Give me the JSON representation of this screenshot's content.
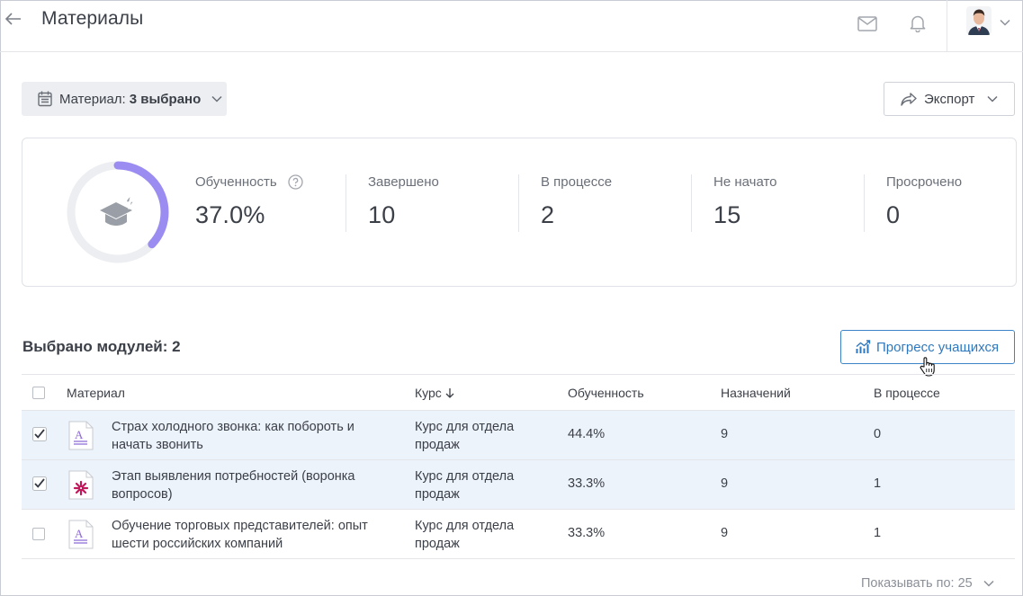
{
  "header": {
    "title": "Материалы"
  },
  "filter": {
    "label": "Материал:",
    "value": "3 выбрано"
  },
  "export": {
    "label": "Экспорт"
  },
  "stats": {
    "proficiency_fraction": 0.37,
    "items": [
      {
        "label": "Обученность",
        "value": "37.0%"
      },
      {
        "label": "Завершено",
        "value": "10"
      },
      {
        "label": "В процессе",
        "value": "2"
      },
      {
        "label": "Не начато",
        "value": "15"
      },
      {
        "label": "Просрочено",
        "value": "0"
      }
    ],
    "colors": {
      "donut_fill": "#9b8cf2",
      "donut_track": "#eceef1"
    }
  },
  "section": {
    "title": "Выбрано модулей: 2",
    "progress_button": "Прогресс учащихся"
  },
  "table": {
    "columns": [
      "Материал",
      "Курс",
      "Обученность",
      "Назначений",
      "В процессе"
    ],
    "rows": [
      {
        "checked": true,
        "icon": "text-doc-icon",
        "material": "Страх холодного звонка: как побороть и начать звонить",
        "course": "Курс для отдела продаж",
        "proficiency": "44.4%",
        "assignments": "9",
        "in_progress": "0"
      },
      {
        "checked": true,
        "icon": "flower-doc-icon",
        "material": "Этап выявления потребностей (воронка вопросов)",
        "course": "Курс для отдела продаж",
        "proficiency": "33.3%",
        "assignments": "9",
        "in_progress": "1"
      },
      {
        "checked": false,
        "icon": "text-doc-icon",
        "material": "Обучение торговых представителей: опыт шести российских компаний",
        "course": "Курс для отдела продаж",
        "proficiency": "33.3%",
        "assignments": "9",
        "in_progress": "1"
      }
    ]
  },
  "pagination": {
    "label": "Показывать по: 25"
  },
  "colors": {
    "accent": "#2f78bd",
    "selected_row": "#edf3fa"
  }
}
